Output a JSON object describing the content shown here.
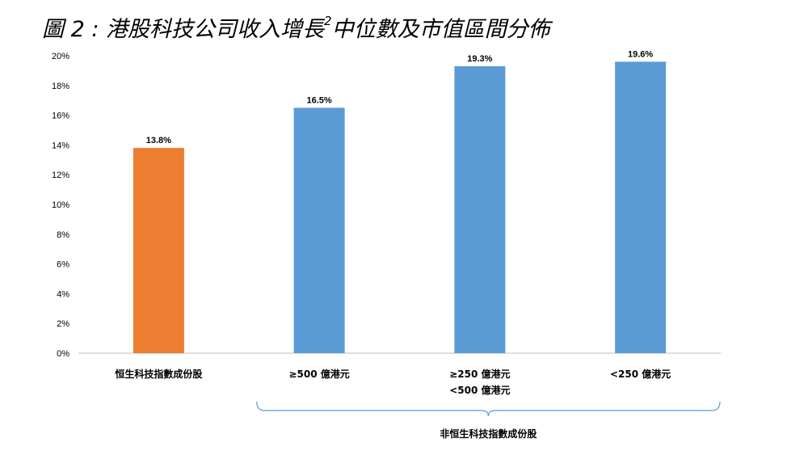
{
  "title": {
    "main": "圖 2 : 港股科技公司收入增長",
    "superscript": "2",
    "suffix": "中位數及市值區間分佈"
  },
  "chart_data": {
    "type": "bar",
    "categories": [
      [
        "恒生科技指數成份股"
      ],
      [
        "≥500 億港元"
      ],
      [
        "≥250 億港元",
        "<500 億港元"
      ],
      [
        "<250 億港元"
      ]
    ],
    "values": [
      13.8,
      16.5,
      19.3,
      19.6
    ],
    "data_labels": [
      "13.8%",
      "16.5%",
      "19.3%",
      "19.6%"
    ],
    "bar_colors": [
      "#ED7D31",
      "#5B9BD5",
      "#5B9BD5",
      "#5B9BD5"
    ],
    "ylim": [
      0,
      20
    ],
    "y_ticks": [
      "0%",
      "2%",
      "4%",
      "6%",
      "8%",
      "10%",
      "12%",
      "14%",
      "16%",
      "18%",
      "20%"
    ],
    "grid": false,
    "group_bracket": {
      "label": "非恒生科技指數成份股",
      "color": "#5B9BD5",
      "categories": [
        1,
        2,
        3
      ]
    }
  }
}
